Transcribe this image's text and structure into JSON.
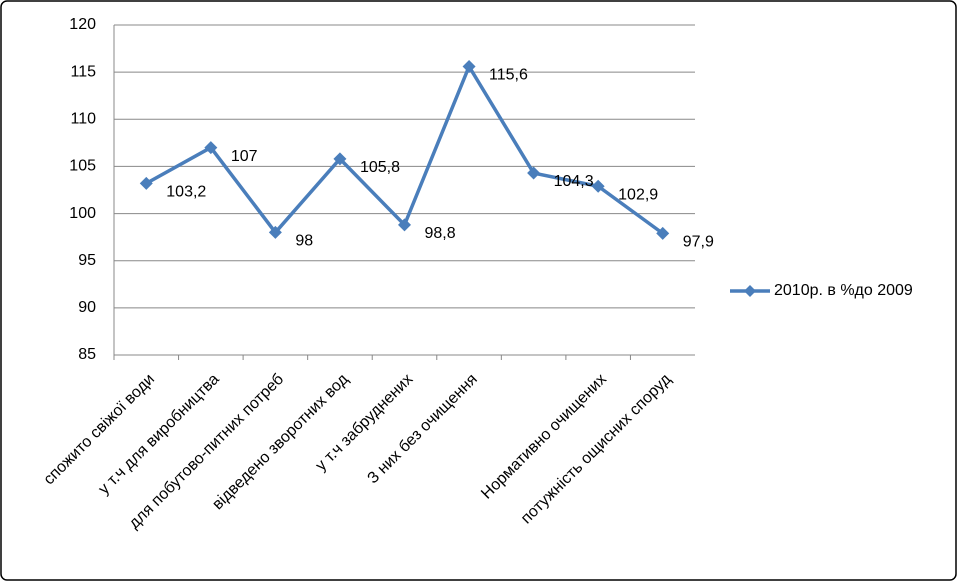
{
  "chart_data": {
    "type": "line",
    "categories": [
      "спожито свіжої води",
      "у т.ч для виробництва",
      "для побутово-питних потреб",
      "відведено зворотних вод",
      "у т.ч забруднених",
      "З них без очищення",
      null,
      "Нормативно очищених",
      "потужність ощисних споруд"
    ],
    "series": [
      {
        "name": "2010р. в %до 2009",
        "color": "#4a7ebb",
        "values": [
          103.2,
          107,
          98,
          105.8,
          98.8,
          115.6,
          104.3,
          102.9,
          97.9
        ],
        "value_labels": [
          "103,2",
          "107",
          "98",
          "105,8",
          "98,8",
          "115,6",
          "104,3",
          "102,9",
          "97,9"
        ]
      }
    ],
    "ylim": [
      85,
      120
    ],
    "yticks": [
      85,
      90,
      95,
      100,
      105,
      110,
      115,
      120
    ],
    "grid": true,
    "legend": "right"
  }
}
